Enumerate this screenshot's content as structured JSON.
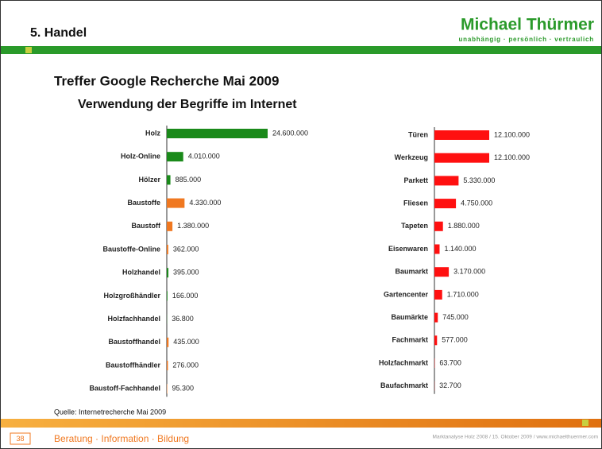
{
  "header": {
    "section": "5. Handel",
    "brand": "Michael Thürmer",
    "tagline": "unabhängig · persönlich · vertraulich"
  },
  "title": "Treffer Google Recherche Mai 2009",
  "subtitle": "Verwendung der Begriffe im Internet",
  "source": "Quelle: Internetrecherche Mai 2009",
  "footer": {
    "page": "38",
    "motto": "Beratung · Information · Bildung",
    "note": "Marktanalyse Holz 2008 / 15. Oktober 2009 / www.michaelthuermer.com"
  },
  "chart_data": [
    {
      "type": "bar",
      "orientation": "horizontal",
      "categories": [
        "Holz",
        "Holz-Online",
        "Hölzer",
        "Baustoffe",
        "Baustoff",
        "Baustoffe-Online",
        "Holzhandel",
        "Holzgroßhändler",
        "Holzfachhandel",
        "Baustoffhandel",
        "Baustoffhändler",
        "Baustoff-Fachhandel"
      ],
      "values": [
        24600000,
        4010000,
        885000,
        4330000,
        1380000,
        362000,
        395000,
        166000,
        36800,
        435000,
        276000,
        95300
      ],
      "value_labels": [
        "24.600.000",
        "4.010.000",
        "885.000",
        "4.330.000",
        "1.380.000",
        "362.000",
        "395.000",
        "166.000",
        "36.800",
        "435.000",
        "276.000",
        "95.300"
      ],
      "colors": [
        "#1a8a1a",
        "#1a8a1a",
        "#1a8a1a",
        "#f07820",
        "#f07820",
        "#f07820",
        "#1a8a1a",
        "#1a8a1a",
        "#1a8a1a",
        "#f07820",
        "#f07820",
        "#f07820"
      ]
    },
    {
      "type": "bar",
      "orientation": "horizontal",
      "categories": [
        "Türen",
        "Werkzeug",
        "Parkett",
        "Fliesen",
        "Tapeten",
        "Eisenwaren",
        "Baumarkt",
        "Gartencenter",
        "Baumärkte",
        "Fachmarkt",
        "Holzfachmarkt",
        "Baufachmarkt"
      ],
      "values": [
        12100000,
        12100000,
        5330000,
        4750000,
        1880000,
        1140000,
        3170000,
        1710000,
        745000,
        577000,
        63700,
        32700
      ],
      "value_labels": [
        "12.100.000",
        "12.100.000",
        "5.330.000",
        "4.750.000",
        "1.880.000",
        "1.140.000",
        "3.170.000",
        "1.710.000",
        "745.000",
        "577.000",
        "63.700",
        "32.700"
      ],
      "colors": [
        "#ff1010",
        "#ff1010",
        "#ff1010",
        "#ff1010",
        "#ff1010",
        "#ff1010",
        "#ff1010",
        "#ff1010",
        "#ff1010",
        "#ff1010",
        "#ff1010",
        "#ff1010"
      ]
    }
  ]
}
